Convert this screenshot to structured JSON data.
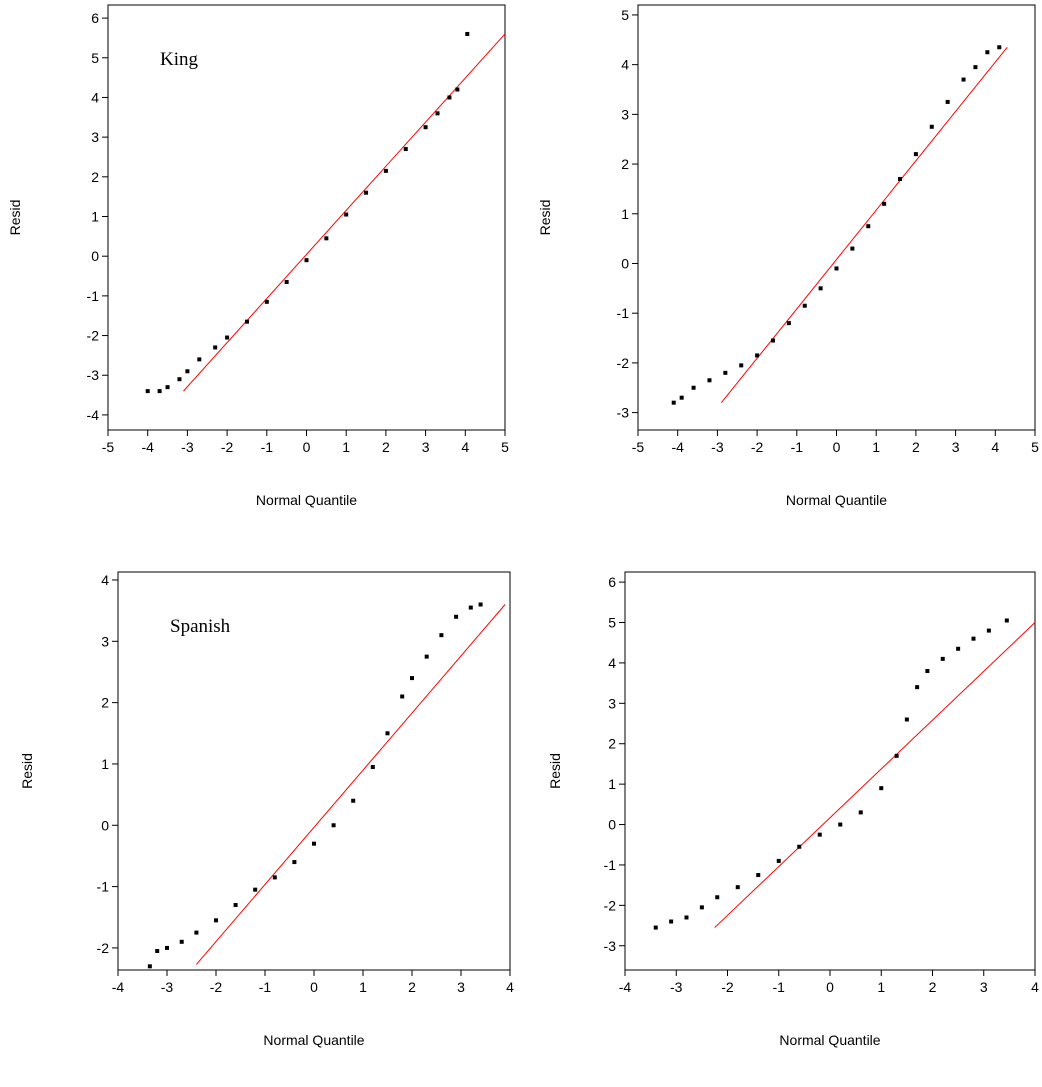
{
  "chart_data": [
    {
      "type": "scatter",
      "annotation": "King",
      "xlabel": "Normal Quantile",
      "ylabel": "Resid",
      "xlim": [
        -5,
        5
      ],
      "ylim": [
        -4.38,
        6.33
      ],
      "xticks": [
        -5,
        -4,
        -3,
        -2,
        -1,
        0,
        1,
        2,
        3,
        4,
        5
      ],
      "yticks": [
        -4,
        -3,
        -2,
        -1,
        0,
        1,
        2,
        3,
        4,
        5,
        6
      ],
      "points": {
        "color": "#000000",
        "x": [
          -4,
          -3.7,
          -3.5,
          -3.2,
          -3,
          -2.7,
          -2.3,
          -2,
          -1.5,
          -1,
          -0.5,
          0,
          0.5,
          1,
          1.5,
          2,
          2.5,
          3,
          3.3,
          3.6,
          3.8,
          4.05
        ],
        "y": [
          -3.4,
          -3.4,
          -3.3,
          -3.1,
          -2.9,
          -2.6,
          -2.3,
          -2.05,
          -1.65,
          -1.15,
          -0.65,
          -0.1,
          0.45,
          1.05,
          1.6,
          2.15,
          2.7,
          3.25,
          3.6,
          4,
          4.2,
          5.6
        ]
      },
      "line": {
        "color": "#ff0000",
        "x": [
          -3.1,
          5
        ],
        "y": [
          -3.4,
          5.6
        ]
      }
    },
    {
      "type": "scatter",
      "xlabel": "Normal Quantile",
      "ylabel": "Resid",
      "xlim": [
        -5,
        5
      ],
      "ylim": [
        -3.35,
        5.2
      ],
      "xticks": [
        -5,
        -4,
        -3,
        -2,
        -1,
        0,
        1,
        2,
        3,
        4,
        5
      ],
      "yticks": [
        -3,
        -2,
        -1,
        0,
        1,
        2,
        3,
        4,
        5
      ],
      "points": {
        "color": "#000000",
        "x": [
          -4.1,
          -3.9,
          -3.6,
          -3.2,
          -2.8,
          -2.4,
          -2,
          -1.6,
          -1.2,
          -0.8,
          -0.4,
          0,
          0.4,
          0.8,
          1.2,
          1.6,
          2,
          2.4,
          2.8,
          3.2,
          3.5,
          3.8,
          4.1
        ],
        "y": [
          -2.8,
          -2.7,
          -2.5,
          -2.35,
          -2.2,
          -2.05,
          -1.85,
          -1.55,
          -1.2,
          -0.85,
          -0.5,
          -0.1,
          0.3,
          0.75,
          1.2,
          1.7,
          2.2,
          2.75,
          3.25,
          3.7,
          3.95,
          4.25,
          4.35
        ]
      },
      "line": {
        "color": "#ff0000",
        "x": [
          -2.9,
          4.3
        ],
        "y": [
          -2.8,
          4.35
        ]
      }
    },
    {
      "type": "scatter",
      "annotation": "Spanish",
      "xlabel": "Normal Quantile",
      "ylabel": "Resid",
      "xlim": [
        -4,
        4
      ],
      "ylim": [
        -2.36,
        4.13
      ],
      "xticks": [
        -4,
        -3,
        -2,
        -1,
        0,
        1,
        2,
        3,
        4
      ],
      "yticks": [
        -2,
        -1,
        0,
        1,
        2,
        3,
        4
      ],
      "points": {
        "color": "#000000",
        "x": [
          -3.35,
          -3.2,
          -3,
          -2.7,
          -2.4,
          -2,
          -1.6,
          -1.2,
          -0.8,
          -0.4,
          0,
          0.4,
          0.8,
          1.2,
          1.5,
          1.8,
          2,
          2.3,
          2.6,
          2.9,
          3.2,
          3.4
        ],
        "y": [
          -2.3,
          -2.05,
          -2,
          -1.9,
          -1.75,
          -1.55,
          -1.3,
          -1.05,
          -0.85,
          -0.6,
          -0.3,
          0,
          0.4,
          0.95,
          1.5,
          2.1,
          2.4,
          2.75,
          3.1,
          3.4,
          3.55,
          3.6
        ]
      },
      "line": {
        "color": "#ff0000",
        "x": [
          -2.4,
          3.9
        ],
        "y": [
          -2.27,
          3.6
        ]
      }
    },
    {
      "type": "scatter",
      "xlabel": "Normal Quantile",
      "ylabel": "Resid",
      "xlim": [
        -4,
        4
      ],
      "ylim": [
        -3.6,
        6.25
      ],
      "xticks": [
        -4,
        -3,
        -2,
        -1,
        0,
        1,
        2,
        3,
        4
      ],
      "yticks": [
        -3,
        -2,
        -1,
        0,
        1,
        2,
        3,
        4,
        5,
        6
      ],
      "points": {
        "color": "#000000",
        "x": [
          -3.4,
          -3.1,
          -2.8,
          -2.5,
          -2.2,
          -1.8,
          -1.4,
          -1,
          -0.6,
          -0.2,
          0.2,
          0.6,
          1,
          1.3,
          1.5,
          1.7,
          1.9,
          2.2,
          2.5,
          2.8,
          3.1,
          3.45
        ],
        "y": [
          -2.55,
          -2.4,
          -2.3,
          -2.05,
          -1.8,
          -1.55,
          -1.25,
          -0.9,
          -0.55,
          -0.25,
          0,
          0.3,
          0.9,
          1.7,
          2.6,
          3.4,
          3.8,
          4.1,
          4.35,
          4.6,
          4.8,
          5.05
        ]
      },
      "line": {
        "color": "#ff0000",
        "x": [
          -2.25,
          4
        ],
        "y": [
          -2.55,
          5
        ]
      }
    }
  ]
}
